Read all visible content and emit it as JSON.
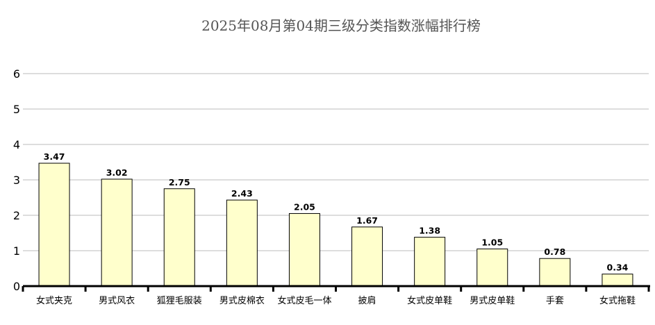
{
  "chart_data": {
    "type": "bar",
    "title": "2025年08月第04期三级分类指数涨幅排行榜",
    "xlabel": "",
    "ylabel": "",
    "categories": [
      "女式夹克",
      "男式风衣",
      "狐狸毛服装",
      "男式皮棉衣",
      "女式皮毛一体",
      "披肩",
      "女式皮单鞋",
      "男式皮单鞋",
      "手套",
      "女式拖鞋"
    ],
    "values": [
      3.47,
      3.02,
      2.75,
      2.43,
      2.05,
      1.67,
      1.38,
      1.05,
      0.78,
      0.34
    ],
    "data_labels": [
      "3.47",
      "3.02",
      "2.75",
      "2.43",
      "2.05",
      "1.67",
      "1.38",
      "1.05",
      "0.78",
      "0.34"
    ],
    "ylim": [
      0,
      6
    ],
    "yticks": [
      "0",
      "1",
      "2",
      "3",
      "4",
      "5",
      "6"
    ],
    "grid": true,
    "legend": "none",
    "colors": {
      "bar_fill": "#ffffcc",
      "bar_stroke": "#000000",
      "grid": "#bbbbbb",
      "axis": "#000000",
      "title": "#555555"
    }
  }
}
